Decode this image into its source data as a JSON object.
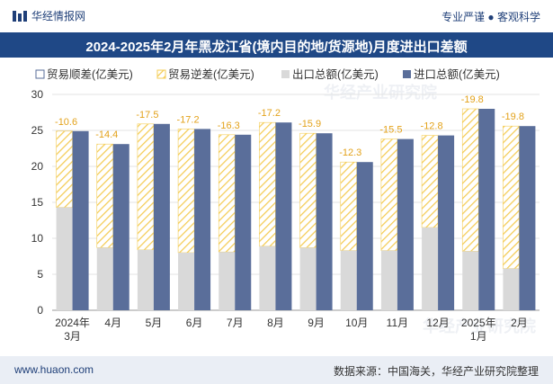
{
  "header": {
    "brand": "华经情报网",
    "tagline": "专业严谨 ● 客观科学"
  },
  "footer": {
    "website": "www.huaon.com",
    "source": "数据来源：中国海关，华经产业研究院整理"
  },
  "watermark": "华经产业研究院",
  "colors": {
    "title_bg": "#1f4886",
    "export": "#d9d9d9",
    "import": "#5a6e9a",
    "deficit_hatch": "#f4cc55",
    "deficit_label": "#e3a21a"
  },
  "chart_data": {
    "type": "bar",
    "title": "2024-2025年2月年黑龙江省(境内目的地/货源地)月度进出口差额",
    "categories": [
      "2024年\n3月",
      "4月",
      "5月",
      "6月",
      "7月",
      "8月",
      "9月",
      "10月",
      "11月",
      "12月",
      "2025年\n1月",
      "2月"
    ],
    "ylim": [
      0,
      30
    ],
    "yticks": [
      0,
      5,
      10,
      15,
      20,
      25,
      30
    ],
    "legend_position": "top",
    "series": [
      {
        "name": "贸易顺差(亿美元)",
        "values": [
          0,
          0,
          0,
          0,
          0,
          0,
          0,
          0,
          0,
          0,
          0,
          0
        ]
      },
      {
        "name": "贸易逆差(亿美元)",
        "values": [
          -10.6,
          -14.4,
          -17.5,
          -17.2,
          -16.3,
          -17.2,
          -15.9,
          -12.3,
          -15.5,
          -12.8,
          -19.8,
          -19.8
        ]
      },
      {
        "name": "出口总额(亿美元)",
        "values": [
          14.3,
          8.7,
          8.4,
          8.0,
          8.1,
          8.9,
          8.7,
          8.3,
          8.3,
          11.5,
          8.2,
          5.8
        ]
      },
      {
        "name": "进口总额(亿美元)",
        "values": [
          24.9,
          23.1,
          25.9,
          25.2,
          24.4,
          26.1,
          24.6,
          20.6,
          23.8,
          24.3,
          28.0,
          25.6
        ]
      }
    ]
  }
}
